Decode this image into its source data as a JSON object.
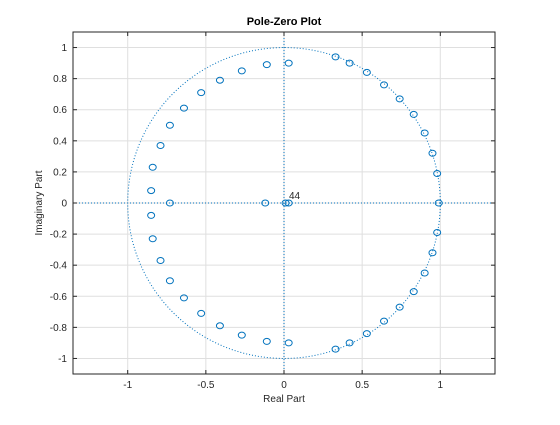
{
  "chart_data": {
    "type": "scatter",
    "title": "Pole-Zero Plot",
    "xlabel": "Real Part",
    "ylabel": "Imaginary Part",
    "xlim": [
      -1.35,
      1.35
    ],
    "ylim": [
      -1.1,
      1.1
    ],
    "xticks": [
      -1,
      -0.5,
      0,
      0.5,
      1
    ],
    "xticklabels": [
      "-1",
      "-0.5",
      "0",
      "0.5",
      "1"
    ],
    "yticks": [
      -1,
      -0.8,
      -0.6,
      -0.4,
      -0.2,
      0,
      0.2,
      0.4,
      0.6,
      0.8,
      1
    ],
    "yticklabels": [
      "-1",
      "-0.8",
      "-0.6",
      "-0.4",
      "-0.2",
      "0",
      "0.2",
      "0.4",
      "0.6",
      "0.8",
      "1"
    ],
    "grid": true,
    "unit_circle": true,
    "annotation": "44",
    "color": "#0072bd",
    "series": [
      {
        "marker": "o",
        "points": [
          [
            0.99,
            0.0
          ],
          [
            0.98,
            0.19
          ],
          [
            0.95,
            0.32
          ],
          [
            0.9,
            0.45
          ],
          [
            0.83,
            0.57
          ],
          [
            0.74,
            0.67
          ],
          [
            0.64,
            0.76
          ],
          [
            0.53,
            0.84
          ],
          [
            0.42,
            0.9
          ],
          [
            0.33,
            0.94
          ],
          [
            0.03,
            0.9
          ],
          [
            -0.11,
            0.89
          ],
          [
            -0.27,
            0.85
          ],
          [
            -0.41,
            0.79
          ],
          [
            -0.53,
            0.71
          ],
          [
            -0.64,
            0.61
          ],
          [
            -0.73,
            0.5
          ],
          [
            -0.79,
            0.37
          ],
          [
            -0.84,
            0.23
          ],
          [
            -0.85,
            0.08
          ],
          [
            -0.73,
            0.0
          ],
          [
            -0.12,
            0.0
          ],
          [
            0.01,
            0.0
          ],
          [
            0.03,
            0.0
          ],
          [
            0.98,
            -0.19
          ],
          [
            0.95,
            -0.32
          ],
          [
            0.9,
            -0.45
          ],
          [
            0.83,
            -0.57
          ],
          [
            0.74,
            -0.67
          ],
          [
            0.64,
            -0.76
          ],
          [
            0.53,
            -0.84
          ],
          [
            0.42,
            -0.9
          ],
          [
            0.33,
            -0.94
          ],
          [
            0.03,
            -0.9
          ],
          [
            -0.11,
            -0.89
          ],
          [
            -0.27,
            -0.85
          ],
          [
            -0.41,
            -0.79
          ],
          [
            -0.53,
            -0.71
          ],
          [
            -0.64,
            -0.61
          ],
          [
            -0.73,
            -0.5
          ],
          [
            -0.79,
            -0.37
          ],
          [
            -0.84,
            -0.23
          ],
          [
            -0.85,
            -0.08
          ]
        ]
      }
    ]
  }
}
